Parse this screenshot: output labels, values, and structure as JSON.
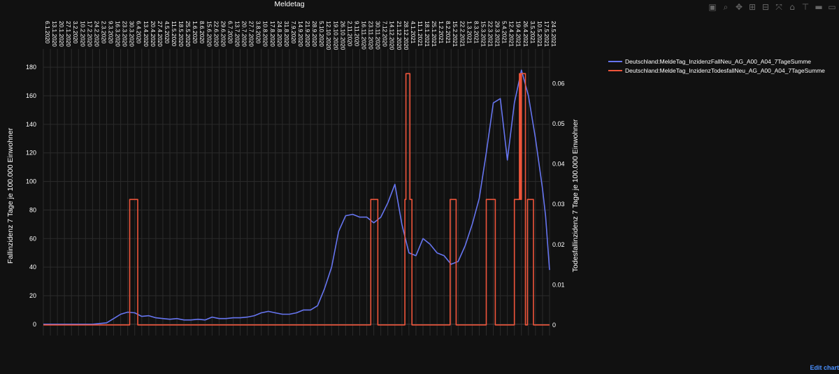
{
  "modebar": {
    "icons": [
      "camera-icon",
      "zoom-icon",
      "pan-icon",
      "zoom-in-icon",
      "zoom-out-icon",
      "autoscale-icon",
      "home-icon",
      "spike-icon",
      "compare-hover-icon",
      "closest-hover-icon"
    ],
    "glyphs": [
      "▣",
      "⌕",
      "✥",
      "⊞",
      "⊟",
      "⤧",
      "⌂",
      "⊤",
      "▬",
      "▭"
    ]
  },
  "edit_chart_label": "Edit chart",
  "chart_data": {
    "type": "line",
    "x_title": "Meldetag",
    "y_title_left": "Fallinzidenz 7 Tage je 100.000 Einwohner",
    "y_title_right": "Todesfallinzidenz 7 Tage je 100.000 Einwohner",
    "x_start": "2020-01-06",
    "x_end": "2021-05-24",
    "x_tick_labels": [
      "6.1.2020",
      "13.1.2020",
      "20.1.2020",
      "27.1.2020",
      "3.2.2020",
      "10.2.2020",
      "17.2.2020",
      "24.2.2020",
      "2.3.2020",
      "9.3.2020",
      "16.3.2020",
      "23.3.2020",
      "30.3.2020",
      "6.4.2020",
      "13.4.2020",
      "20.4.2020",
      "27.4.2020",
      "4.5.2020",
      "11.5.2020",
      "18.5.2020",
      "25.5.2020",
      "1.6.2020",
      "8.6.2020",
      "15.6.2020",
      "22.6.2020",
      "29.6.2020",
      "6.7.2020",
      "13.7.2020",
      "20.7.2020",
      "27.7.2020",
      "3.8.2020",
      "10.8.2020",
      "17.8.2020",
      "24.8.2020",
      "31.8.2020",
      "7.9.2020",
      "14.9.2020",
      "21.9.2020",
      "28.9.2020",
      "5.10.2020",
      "12.10.2020",
      "19.10.2020",
      "26.10.2020",
      "2.11.2020",
      "9.11.2020",
      "16.11.2020",
      "23.11.2020",
      "30.11.2020",
      "7.12.2020",
      "14.12.2020",
      "21.12.2020",
      "28.12.2020",
      "4.1.2021",
      "11.1.2021",
      "18.1.2021",
      "25.1.2021",
      "1.2.2021",
      "8.2.2021",
      "15.2.2021",
      "22.2.2021",
      "1.3.2021",
      "8.3.2021",
      "15.3.2021",
      "22.3.2021",
      "29.3.2021",
      "5.4.2021",
      "12.4.2021",
      "19.4.2021",
      "26.4.2021",
      "3.5.2021",
      "10.5.2021",
      "17.5.2021",
      "24.5.2021"
    ],
    "y_left_ticks": [
      0,
      20,
      40,
      60,
      80,
      100,
      120,
      140,
      160,
      180
    ],
    "y_left_range": [
      -4,
      184
    ],
    "y_right_ticks": [
      0,
      0.01,
      0.02,
      0.03,
      0.04,
      0.05,
      0.06
    ],
    "y_right_tick_labels": [
      "0",
      "0.01",
      "0.02",
      "0.03",
      "0.04",
      "0.05",
      "0.06"
    ],
    "y_right_range": [
      -0.00125,
      0.0655
    ],
    "grid": true,
    "legend_position": "top-right",
    "series": [
      {
        "name": "Deutschland:MeldeTag_InzidenzFallNeu_AG_A00_A04_7TageSumme",
        "axis": "left",
        "color": "#6675f0",
        "points": [
          [
            "2020-01-06",
            0
          ],
          [
            "2020-02-24",
            0
          ],
          [
            "2020-03-09",
            1
          ],
          [
            "2020-03-16",
            4
          ],
          [
            "2020-03-23",
            7
          ],
          [
            "2020-03-30",
            8.5
          ],
          [
            "2020-04-06",
            8
          ],
          [
            "2020-04-13",
            5.5
          ],
          [
            "2020-04-20",
            6
          ],
          [
            "2020-04-27",
            4.5
          ],
          [
            "2020-05-04",
            4
          ],
          [
            "2020-05-11",
            3.5
          ],
          [
            "2020-05-18",
            4
          ],
          [
            "2020-05-25",
            3
          ],
          [
            "2020-06-01",
            3
          ],
          [
            "2020-06-08",
            3.5
          ],
          [
            "2020-06-15",
            3
          ],
          [
            "2020-06-22",
            5
          ],
          [
            "2020-06-29",
            4
          ],
          [
            "2020-07-06",
            4
          ],
          [
            "2020-07-13",
            4.5
          ],
          [
            "2020-07-20",
            4.5
          ],
          [
            "2020-07-27",
            5
          ],
          [
            "2020-08-03",
            6
          ],
          [
            "2020-08-10",
            8
          ],
          [
            "2020-08-17",
            9
          ],
          [
            "2020-08-24",
            8
          ],
          [
            "2020-08-31",
            7
          ],
          [
            "2020-09-07",
            7
          ],
          [
            "2020-09-14",
            8
          ],
          [
            "2020-09-21",
            10
          ],
          [
            "2020-09-28",
            10
          ],
          [
            "2020-10-05",
            13
          ],
          [
            "2020-10-12",
            25
          ],
          [
            "2020-10-19",
            40
          ],
          [
            "2020-10-26",
            65
          ],
          [
            "2020-11-02",
            76
          ],
          [
            "2020-11-09",
            77
          ],
          [
            "2020-11-16",
            75
          ],
          [
            "2020-11-23",
            75
          ],
          [
            "2020-11-30",
            71
          ],
          [
            "2020-12-07",
            75
          ],
          [
            "2020-12-14",
            85
          ],
          [
            "2020-12-21",
            98
          ],
          [
            "2020-12-28",
            70
          ],
          [
            "2021-01-04",
            50
          ],
          [
            "2021-01-11",
            48
          ],
          [
            "2021-01-18",
            60
          ],
          [
            "2021-01-25",
            56
          ],
          [
            "2021-02-01",
            50
          ],
          [
            "2021-02-08",
            48
          ],
          [
            "2021-02-15",
            42
          ],
          [
            "2021-02-22",
            44
          ],
          [
            "2021-03-01",
            55
          ],
          [
            "2021-03-08",
            70
          ],
          [
            "2021-03-15",
            88
          ],
          [
            "2021-03-22",
            120
          ],
          [
            "2021-03-29",
            155
          ],
          [
            "2021-04-05",
            158
          ],
          [
            "2021-04-12",
            115
          ],
          [
            "2021-04-19",
            155
          ],
          [
            "2021-04-26",
            178
          ],
          [
            "2021-05-03",
            160
          ],
          [
            "2021-05-10",
            130
          ],
          [
            "2021-05-17",
            95
          ],
          [
            "2021-05-20",
            76
          ],
          [
            "2021-05-24",
            38
          ]
        ]
      },
      {
        "name": "Deutschland:MeldeTag_InzidenzTodesfallNeu_AG_A00_A04_7TageSumme",
        "axis": "right",
        "color": "#ef553b",
        "points": [
          [
            "2020-01-06",
            0
          ],
          [
            "2020-04-01",
            0
          ],
          [
            "2020-04-01",
            0.0312
          ],
          [
            "2020-04-09",
            0.0312
          ],
          [
            "2020-04-09",
            0
          ],
          [
            "2020-11-27",
            0
          ],
          [
            "2020-11-27",
            0.0312
          ],
          [
            "2020-12-04",
            0.0312
          ],
          [
            "2020-12-04",
            0
          ],
          [
            "2020-12-31",
            0
          ],
          [
            "2020-12-31",
            0.0312
          ],
          [
            "2021-01-01",
            0.0312
          ],
          [
            "2021-01-01",
            0.0625
          ],
          [
            "2021-01-05",
            0.0625
          ],
          [
            "2021-01-05",
            0.0312
          ],
          [
            "2021-01-07",
            0.0312
          ],
          [
            "2021-01-07",
            0
          ],
          [
            "2021-02-14",
            0
          ],
          [
            "2021-02-14",
            0.0312
          ],
          [
            "2021-02-20",
            0.0312
          ],
          [
            "2021-02-20",
            0
          ],
          [
            "2021-03-22",
            0
          ],
          [
            "2021-03-22",
            0.0312
          ],
          [
            "2021-03-31",
            0.0312
          ],
          [
            "2021-03-31",
            0
          ],
          [
            "2021-04-19",
            0
          ],
          [
            "2021-04-19",
            0.0312
          ],
          [
            "2021-04-24",
            0.0312
          ],
          [
            "2021-04-24",
            0.0625
          ],
          [
            "2021-04-25",
            0.0625
          ],
          [
            "2021-04-25",
            0.0312
          ],
          [
            "2021-04-26",
            0.0312
          ],
          [
            "2021-04-26",
            0.0625
          ],
          [
            "2021-04-30",
            0.0625
          ],
          [
            "2021-04-30",
            0
          ],
          [
            "2021-05-02",
            0
          ],
          [
            "2021-05-02",
            0.0312
          ],
          [
            "2021-05-08",
            0.0312
          ],
          [
            "2021-05-08",
            0
          ],
          [
            "2021-05-24",
            0
          ]
        ]
      }
    ]
  }
}
